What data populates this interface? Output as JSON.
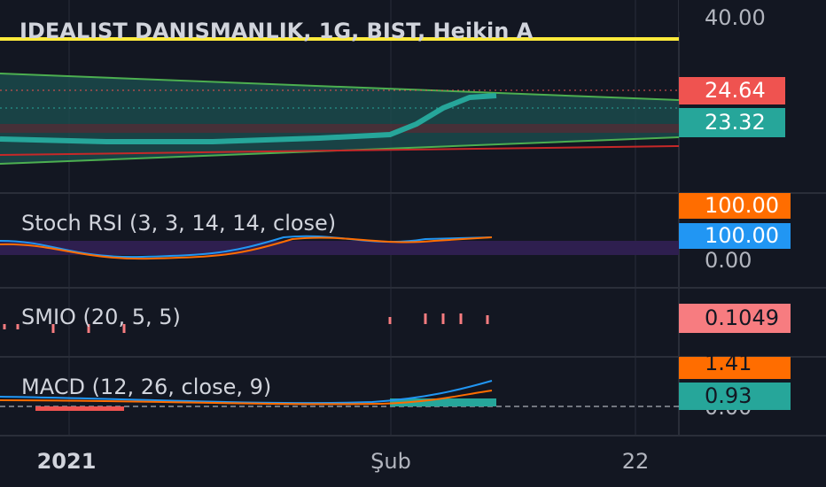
{
  "header": {
    "title": "IDEALIST DANISMANLIK, 1G, BIST, Heikin A"
  },
  "price_axis": {
    "top": "40.00",
    "last_high": "24.64",
    "last_close": "23.32"
  },
  "indicators": [
    {
      "label": "Stoch RSI (3, 3, 14, 14, close)",
      "values": [
        "100.00",
        "100.00"
      ],
      "axis": "0.00"
    },
    {
      "label": "SMIO (20, 5, 5)",
      "values": [
        "0.1049"
      ]
    },
    {
      "label": "MACD (12, 26, close, 9)",
      "values": [
        "1.41",
        "0.93"
      ],
      "axis": "0.00"
    }
  ],
  "time_axis": [
    "2021",
    "Şub",
    "22"
  ]
}
